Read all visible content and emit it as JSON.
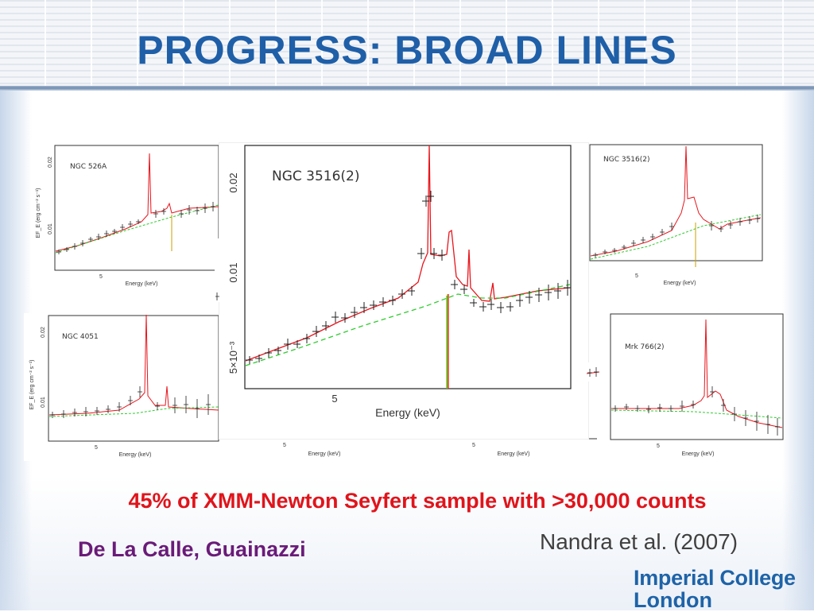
{
  "slide": {
    "title": "PROGRESS: BROAD LINES",
    "highlight": "45% of XMM-Newton Seyfert sample with >30,000 counts",
    "authors": "De La Calle, Guainazzi",
    "reference": "Nandra et al. (2007)",
    "logo": {
      "line1": "Imperial College",
      "line2": "London"
    }
  },
  "colors": {
    "title": "#1f5fa8",
    "highlight": "#e0141b",
    "authors": "#6a1b78",
    "model": "#e8151c",
    "continuum": "#2ecc2e"
  },
  "plots": {
    "ngc526a": {
      "label": "NGC 526A",
      "ytick1": "0.02",
      "ytick2": "0.01",
      "xtick": "5",
      "xlabel": "Energy (keV)",
      "ylabel": "EF_E (erg cm⁻² s⁻¹)"
    },
    "ngc4051": {
      "label": "NGC 4051",
      "ytick1": "0.02",
      "ytick2": "0.01",
      "xtick": "5",
      "xlabel": "Energy (keV)",
      "ylabel": "EF_E (erg cm⁻² s⁻¹)"
    },
    "ngc3516_main": {
      "label": "NGC 3516(2)",
      "ytick1": "0.02",
      "ytick2": "0.01",
      "ytick3": "5×10⁻³",
      "xtick": "5",
      "xlabel": "Energy (keV)"
    },
    "ngc3516_small": {
      "label": "NGC 3516(2)",
      "xtick": "5",
      "xlabel": "Energy (keV)"
    },
    "mrk766": {
      "label": "Mrk 766(2)",
      "xtick": "5",
      "xlabel": "Energy (keV)"
    },
    "hidden_left": {
      "xtick": "5",
      "xlabel": "Energy (keV)"
    },
    "hidden_right": {
      "xtick": "5",
      "xlabel": "Energy (keV)"
    }
  }
}
